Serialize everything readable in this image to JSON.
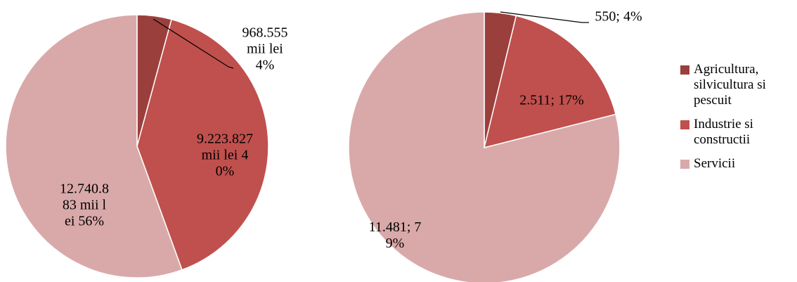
{
  "chart_data": [
    {
      "type": "pie",
      "categories": [
        "Agricultura, silvicultura si pescuit",
        "Industrie si constructii",
        "Servicii"
      ],
      "colors": [
        "#9b3f3d",
        "#c0504d",
        "#d9a9a9"
      ],
      "values": [
        968555,
        9223827,
        12740883
      ],
      "value_labels": [
        "968.555 mii lei 4%",
        "9.223.827 mii lei 40%",
        "12.740.883 mii lei 56%"
      ]
    },
    {
      "type": "pie",
      "categories": [
        "Agricultura, silvicultura si pescuit",
        "Industrie si constructii",
        "Servicii"
      ],
      "colors": [
        "#9b3f3d",
        "#c0504d",
        "#d9a9a9"
      ],
      "values": [
        550,
        2511,
        11481
      ],
      "value_labels": [
        "550; 4%",
        "2.511; 17%",
        "11.481; 79%"
      ],
      "legend": "right"
    }
  ]
}
